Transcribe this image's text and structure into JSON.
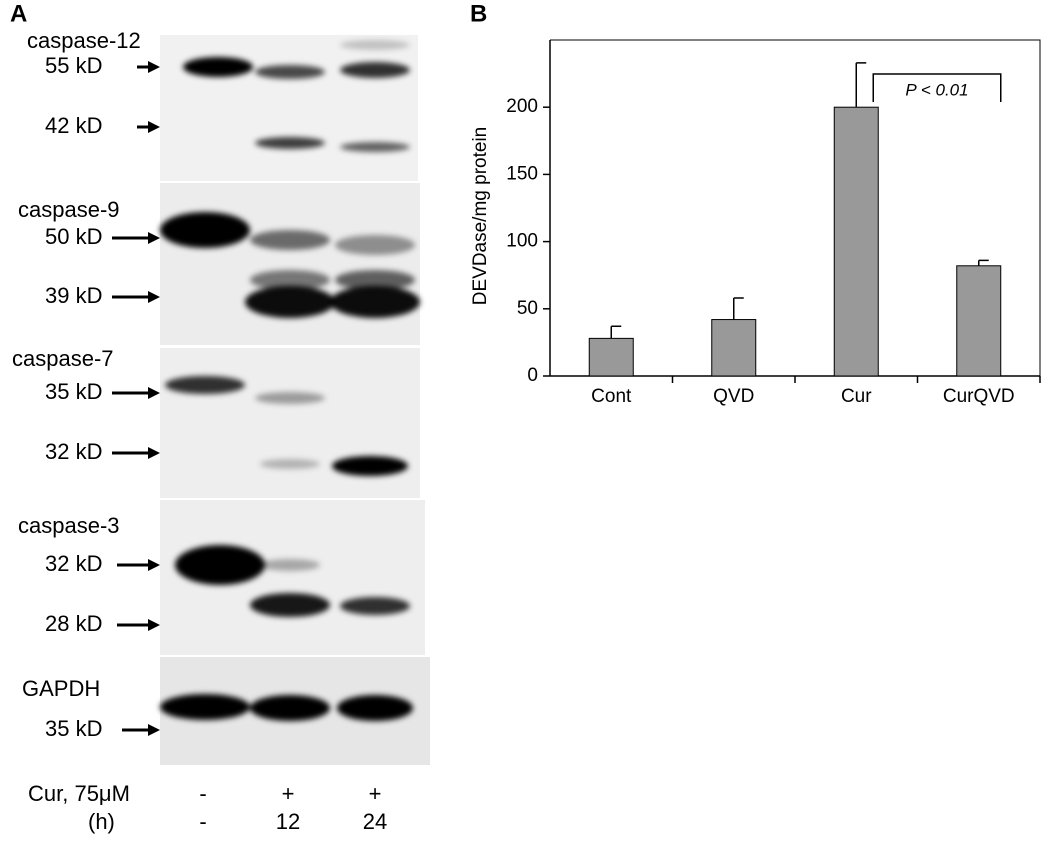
{
  "panel_a": {
    "label": "A",
    "blots": [
      {
        "name": "caspase-12",
        "bands": [
          "55 kD",
          "42 kD"
        ]
      },
      {
        "name": "caspase-9",
        "bands": [
          "50 kD",
          "39 kD"
        ]
      },
      {
        "name": "caspase-7",
        "bands": [
          "35 kD",
          "32 kD"
        ]
      },
      {
        "name": "caspase-3",
        "bands": [
          "32 kD",
          "28 kD"
        ]
      },
      {
        "name": "GAPDH",
        "bands": [
          "35 kD"
        ]
      }
    ],
    "treatment": [
      {
        "label": "Cur, 75μM",
        "lanes": [
          "-",
          "+",
          "+"
        ]
      },
      {
        "label": "(h)",
        "lanes": [
          "-",
          "12",
          "24"
        ]
      }
    ]
  },
  "chart_data": {
    "type": "bar",
    "panel_label": "B",
    "ylabel": "DEVDase/mg protein",
    "categories": [
      "Cont",
      "QVD",
      "Cur",
      "CurQVD"
    ],
    "values": [
      28,
      42,
      200,
      82
    ],
    "errors": [
      9,
      16,
      33,
      4
    ],
    "color": "#999999",
    "ylim": [
      0,
      250
    ],
    "yticks": [
      0,
      50,
      100,
      150,
      200
    ],
    "annotation": "P < 0.01"
  }
}
